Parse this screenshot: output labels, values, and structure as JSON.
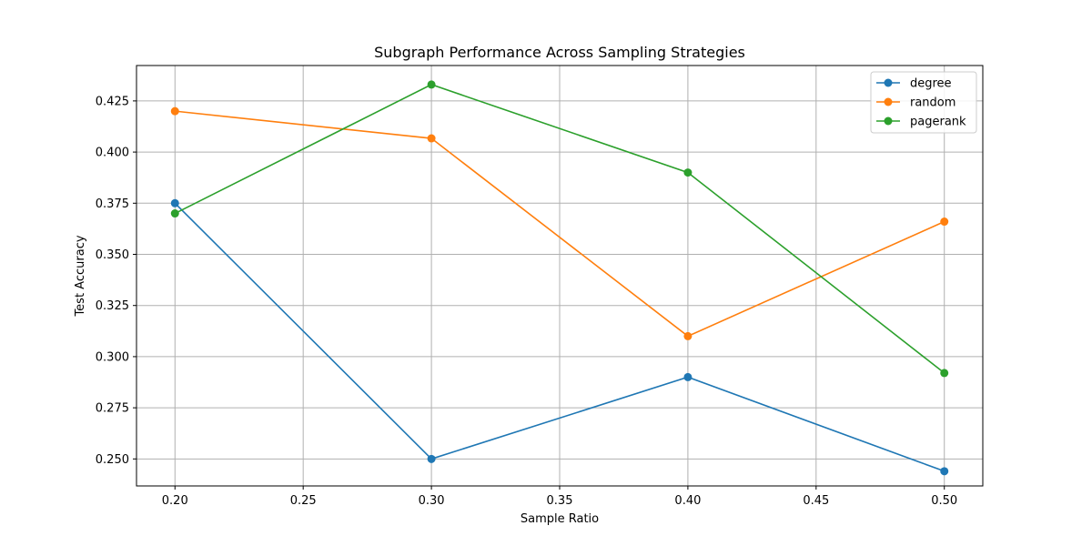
{
  "chart_data": {
    "type": "line",
    "title": "Subgraph Performance Across Sampling Strategies",
    "xlabel": "Sample Ratio",
    "ylabel": "Test Accuracy",
    "x": [
      0.2,
      0.3,
      0.4,
      0.5
    ],
    "xlim": [
      0.185,
      0.515
    ],
    "ylim": [
      0.2368,
      0.4423
    ],
    "xticks": [
      0.2,
      0.25,
      0.3,
      0.35,
      0.4,
      0.45,
      0.5
    ],
    "xtick_labels": [
      "0.20",
      "0.25",
      "0.30",
      "0.35",
      "0.40",
      "0.45",
      "0.50"
    ],
    "yticks": [
      0.25,
      0.275,
      0.3,
      0.325,
      0.35,
      0.375,
      0.4,
      0.425
    ],
    "ytick_labels": [
      "0.250",
      "0.275",
      "0.300",
      "0.325",
      "0.350",
      "0.375",
      "0.400",
      "0.425"
    ],
    "grid": true,
    "legend_position": "top-right",
    "series": [
      {
        "name": "degree",
        "color": "#1f77b4",
        "values": [
          0.375,
          0.25,
          0.29,
          0.244
        ]
      },
      {
        "name": "random",
        "color": "#ff7f0e",
        "values": [
          0.42,
          0.4067,
          0.31,
          0.366
        ]
      },
      {
        "name": "pagerank",
        "color": "#2ca02c",
        "values": [
          0.37,
          0.433,
          0.39,
          0.292
        ]
      }
    ]
  }
}
